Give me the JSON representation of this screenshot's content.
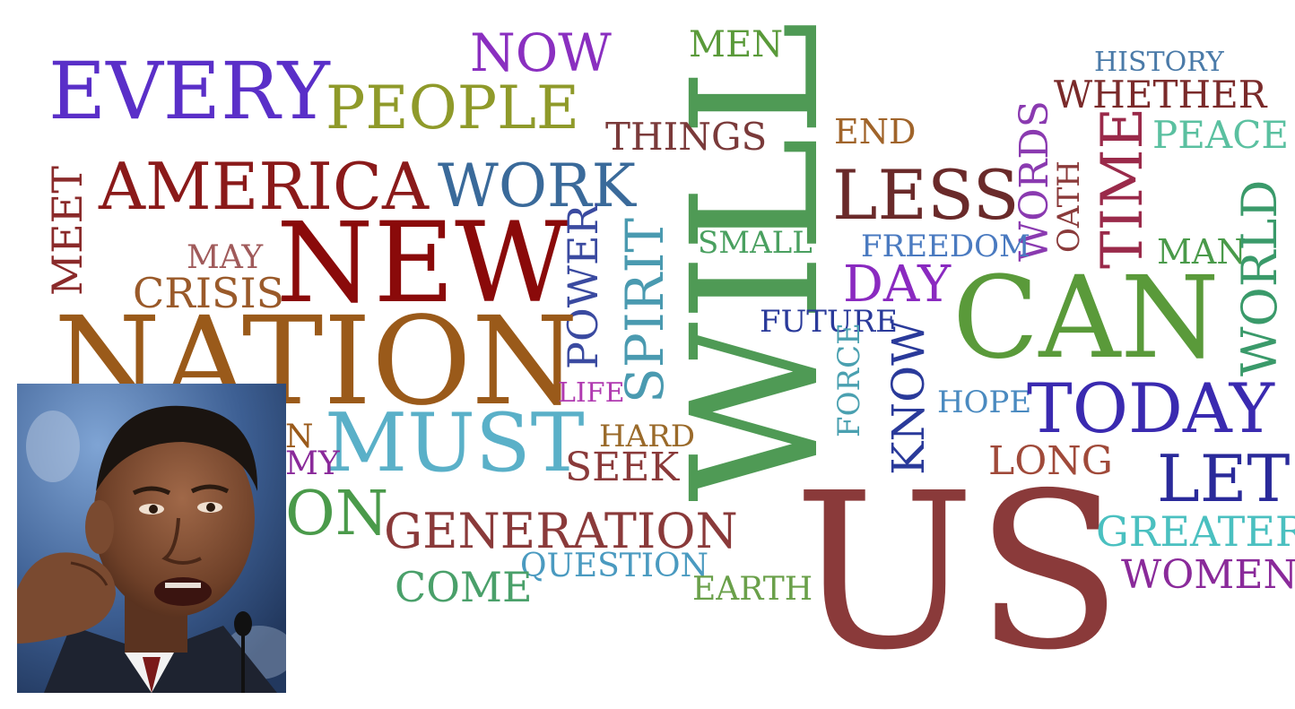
{
  "words": [
    {
      "text": "EVERY",
      "color": "#5a2fc8"
    },
    {
      "text": "PEOPLE",
      "color": "#8f9a2a"
    },
    {
      "text": "NOW",
      "color": "#8a2fc0"
    },
    {
      "text": "MEN",
      "color": "#5a9a3a"
    },
    {
      "text": "WILL",
      "color": "#4f9a55"
    },
    {
      "text": "HISTORY",
      "color": "#4a7aa8"
    },
    {
      "text": "WHETHER",
      "color": "#7a2a2a"
    },
    {
      "text": "THINGS",
      "color": "#7a3a3a"
    },
    {
      "text": "END",
      "color": "#a0642a"
    },
    {
      "text": "TIME",
      "color": "#9a2a4a"
    },
    {
      "text": "PEACE",
      "color": "#5ac0a0"
    },
    {
      "text": "AMERICA",
      "color": "#8a1a1a"
    },
    {
      "text": "WORK",
      "color": "#3a6a9a"
    },
    {
      "text": "LESS",
      "color": "#6a2a2a"
    },
    {
      "text": "WORDS",
      "color": "#8a3ab0"
    },
    {
      "text": "OATH",
      "color": "#8a3a3a"
    },
    {
      "text": "MEET",
      "color": "#8a2a2a"
    },
    {
      "text": "NEW",
      "color": "#8a0a0a"
    },
    {
      "text": "POWER",
      "color": "#3a4aa0"
    },
    {
      "text": "SPIRIT",
      "color": "#4a9ab0"
    },
    {
      "text": "SMALL",
      "color": "#4aa060"
    },
    {
      "text": "FREEDOM",
      "color": "#4a7ac0"
    },
    {
      "text": "MAN",
      "color": "#4a9a4a"
    },
    {
      "text": "WORLD",
      "color": "#3a9a6a"
    },
    {
      "text": "MAY",
      "color": "#a05a5a"
    },
    {
      "text": "CRISIS",
      "color": "#9a5a2a"
    },
    {
      "text": "DAY",
      "color": "#8a2ac0"
    },
    {
      "text": "CAN",
      "color": "#5a9a3a"
    },
    {
      "text": "NATION",
      "color": "#9a5a1a"
    },
    {
      "text": "FUTURE",
      "color": "#2a3a9a"
    },
    {
      "text": "KNOW",
      "color": "#2a3a9a"
    },
    {
      "text": "FORCE",
      "color": "#4aa0b0"
    },
    {
      "text": "LIFE",
      "color": "#b03ab0"
    },
    {
      "text": "HOPE",
      "color": "#4a8ac0"
    },
    {
      "text": "TODAY",
      "color": "#3a2ab0"
    },
    {
      "text": "MUST",
      "color": "#5ab0c8"
    },
    {
      "text": "HARD",
      "color": "#9a6a2a"
    },
    {
      "text": "SEEK",
      "color": "#8a3a3a"
    },
    {
      "text": "LONG",
      "color": "#a04a3a"
    },
    {
      "text": "LET",
      "color": "#2a2a9a"
    },
    {
      "text": "US",
      "color": "#8a3a3a"
    },
    {
      "text": "GENERATION",
      "color": "#8a3a3a"
    },
    {
      "text": "GREATER",
      "color": "#4ac0c0"
    },
    {
      "text": "QUESTION",
      "color": "#4a9ac0"
    },
    {
      "text": "COME",
      "color": "#4aa06a"
    },
    {
      "text": "EARTH",
      "color": "#6aa04a"
    },
    {
      "text": "WOMEN",
      "color": "#8a2a9a"
    },
    {
      "text": "N",
      "color": "#9a5a1a"
    },
    {
      "text": "MY",
      "color": "#8a2a9a"
    },
    {
      "text": "ON",
      "color": "#4a9a4a"
    }
  ],
  "portrait": {
    "subject": "speaker-photo"
  }
}
